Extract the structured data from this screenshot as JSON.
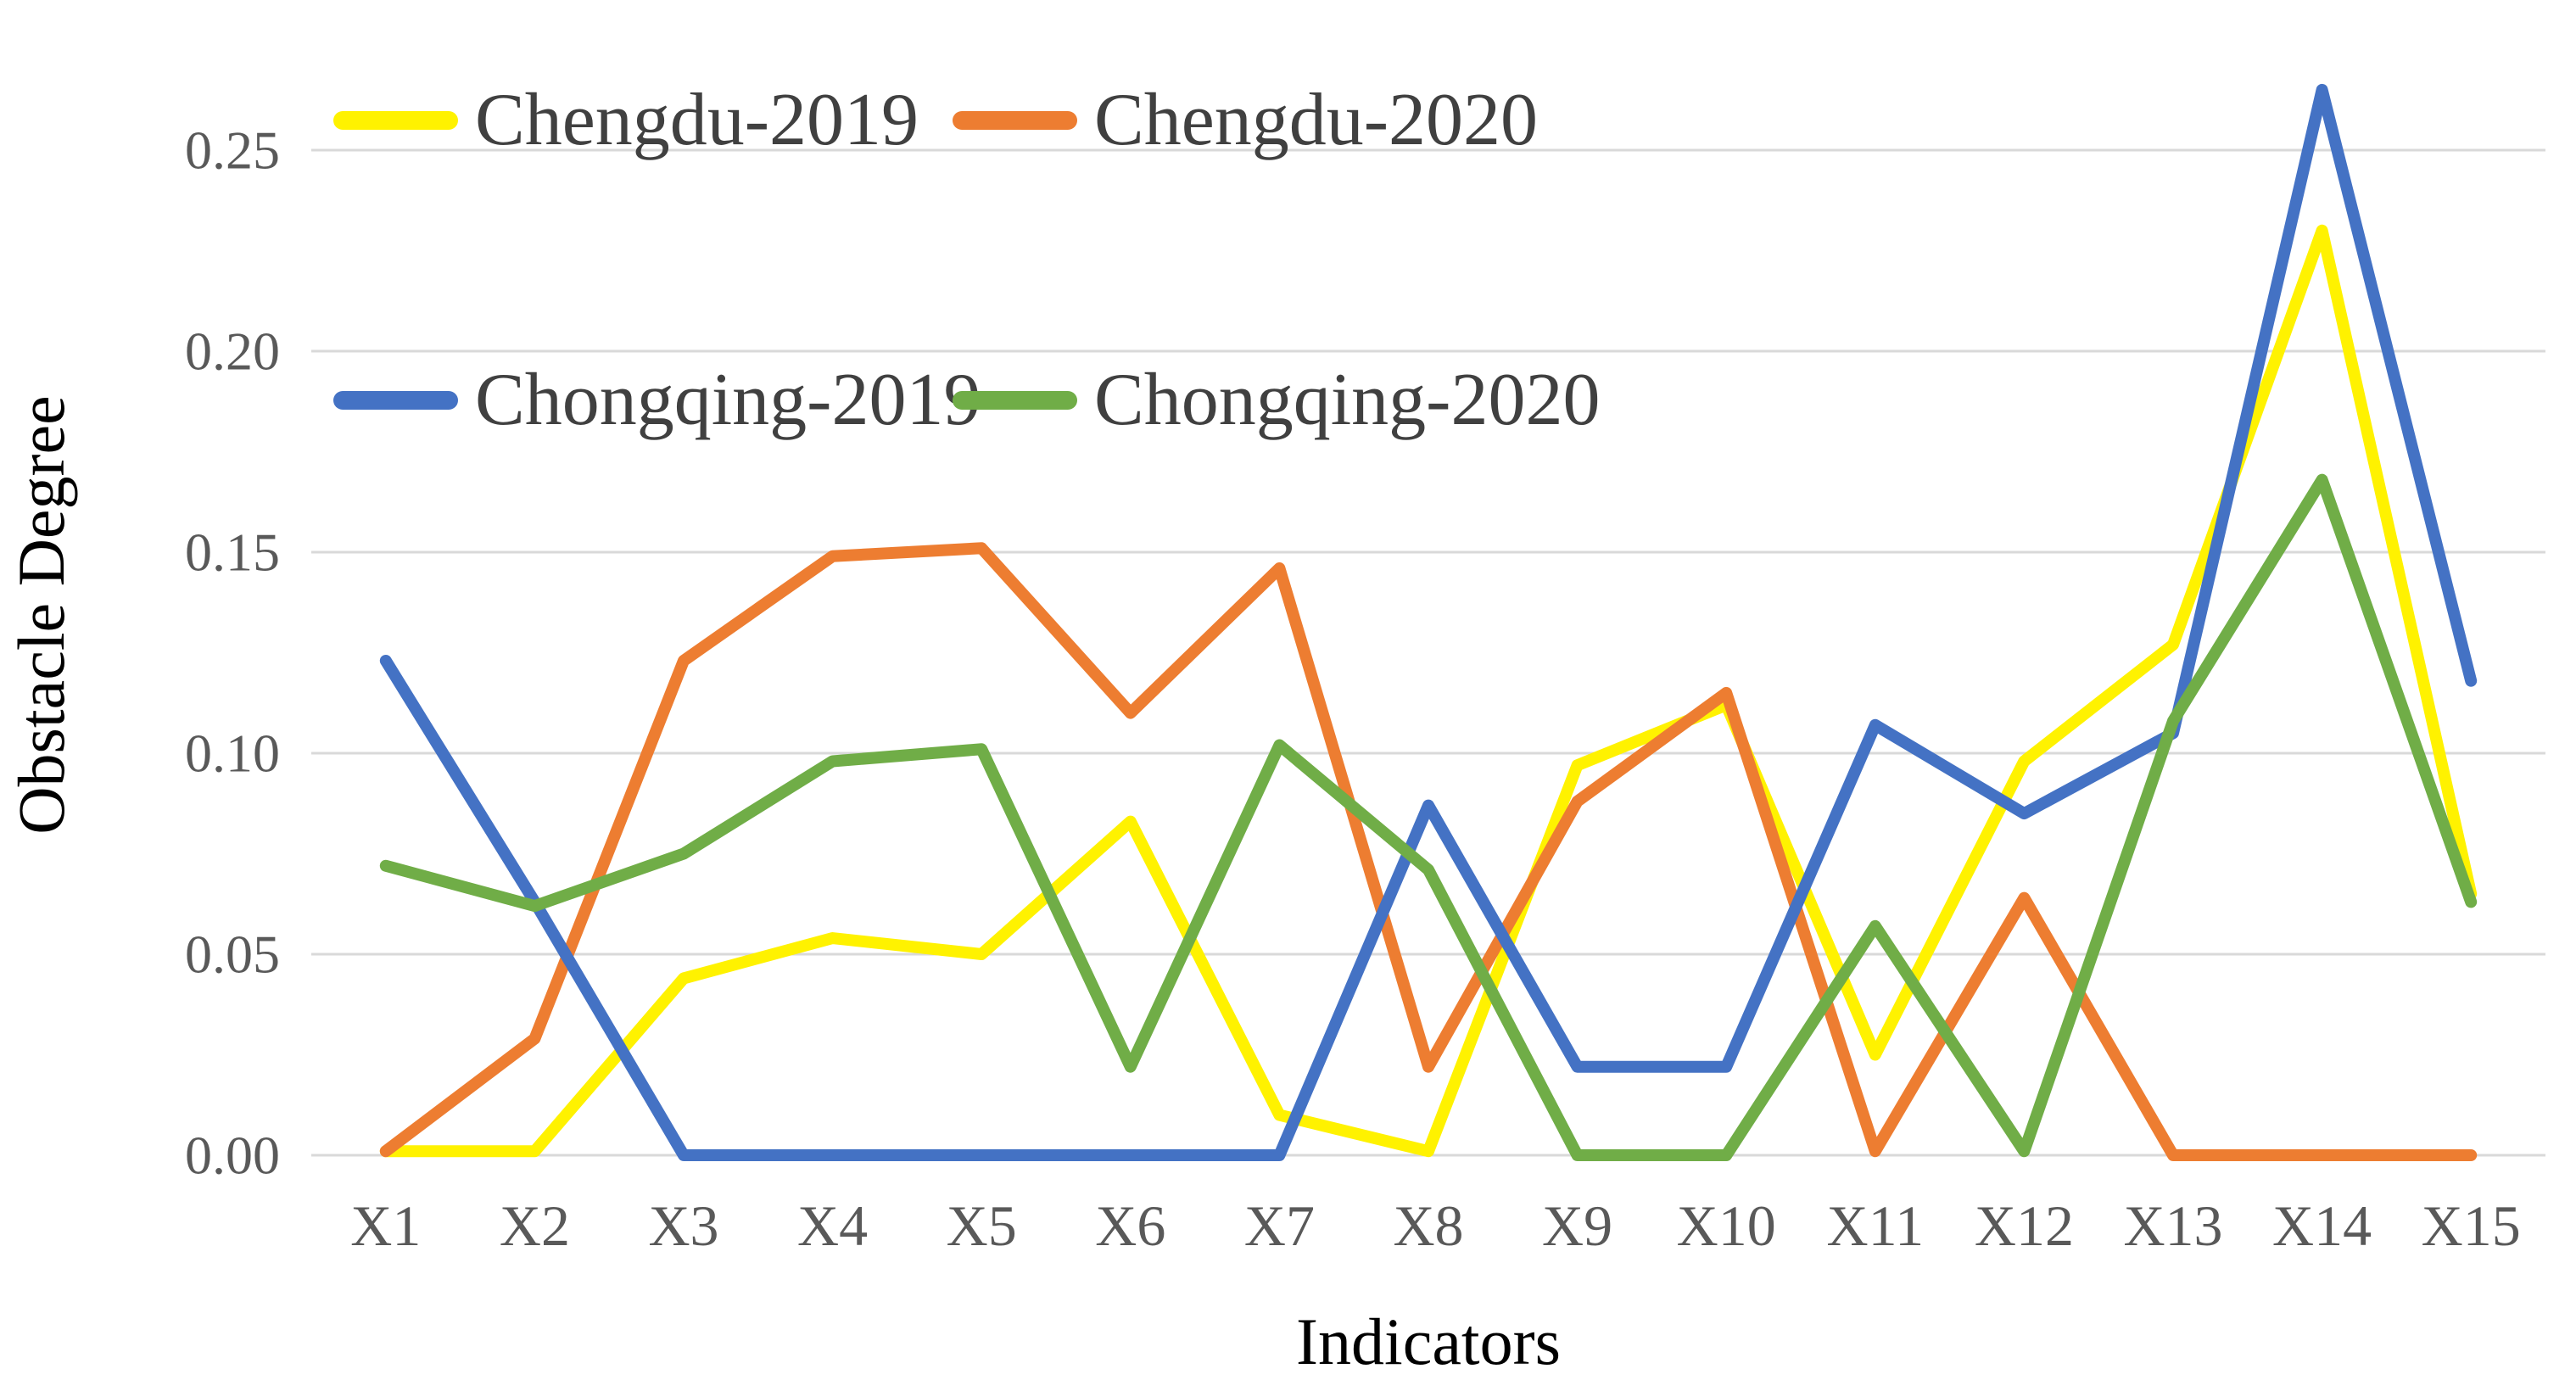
{
  "chart_data": {
    "type": "line",
    "title": "",
    "xlabel": "Indicators",
    "ylabel": "Obstacle Degree",
    "categories": [
      "X1",
      "X2",
      "X3",
      "X4",
      "X5",
      "X6",
      "X7",
      "X8",
      "X9",
      "X10",
      "X11",
      "X12",
      "X13",
      "X14",
      "X15"
    ],
    "y_ticks": [
      "0.00",
      "0.05",
      "0.10",
      "0.15",
      "0.20",
      "0.25"
    ],
    "ylim": [
      0.0,
      0.27
    ],
    "grid": "horizontal-only",
    "legend_position": "top-left-inside, 2 rows x 2 columns",
    "series": [
      {
        "name": "Chengdu-2019",
        "color": "#FFF200",
        "values": [
          0.001,
          0.001,
          0.044,
          0.054,
          0.05,
          0.083,
          0.01,
          0.001,
          0.097,
          0.112,
          0.025,
          0.098,
          0.127,
          0.23,
          0.065
        ]
      },
      {
        "name": "Chengdu-2020",
        "color": "#ED7D31",
        "values": [
          0.001,
          0.029,
          0.123,
          0.149,
          0.151,
          0.11,
          0.146,
          0.022,
          0.088,
          0.115,
          0.001,
          0.064,
          0.0,
          0.0,
          0.0
        ]
      },
      {
        "name": "Chongqing-2019",
        "color": "#4472C4",
        "values": [
          0.123,
          0.063,
          0.0,
          0.0,
          0.0,
          0.0,
          0.0,
          0.087,
          0.022,
          0.022,
          0.107,
          0.085,
          0.105,
          0.265,
          0.118
        ]
      },
      {
        "name": "Chongqing-2020",
        "color": "#70AD47",
        "values": [
          0.072,
          0.062,
          0.075,
          0.098,
          0.101,
          0.022,
          0.102,
          0.071,
          0.0,
          0.0,
          0.057,
          0.001,
          0.108,
          0.168,
          0.063
        ]
      }
    ],
    "colors": {
      "gridline": "#D9D9D9",
      "tick_label": "#595959",
      "axis_title": "#000000",
      "legend_label": "#404040",
      "background": "#FFFFFF"
    }
  }
}
